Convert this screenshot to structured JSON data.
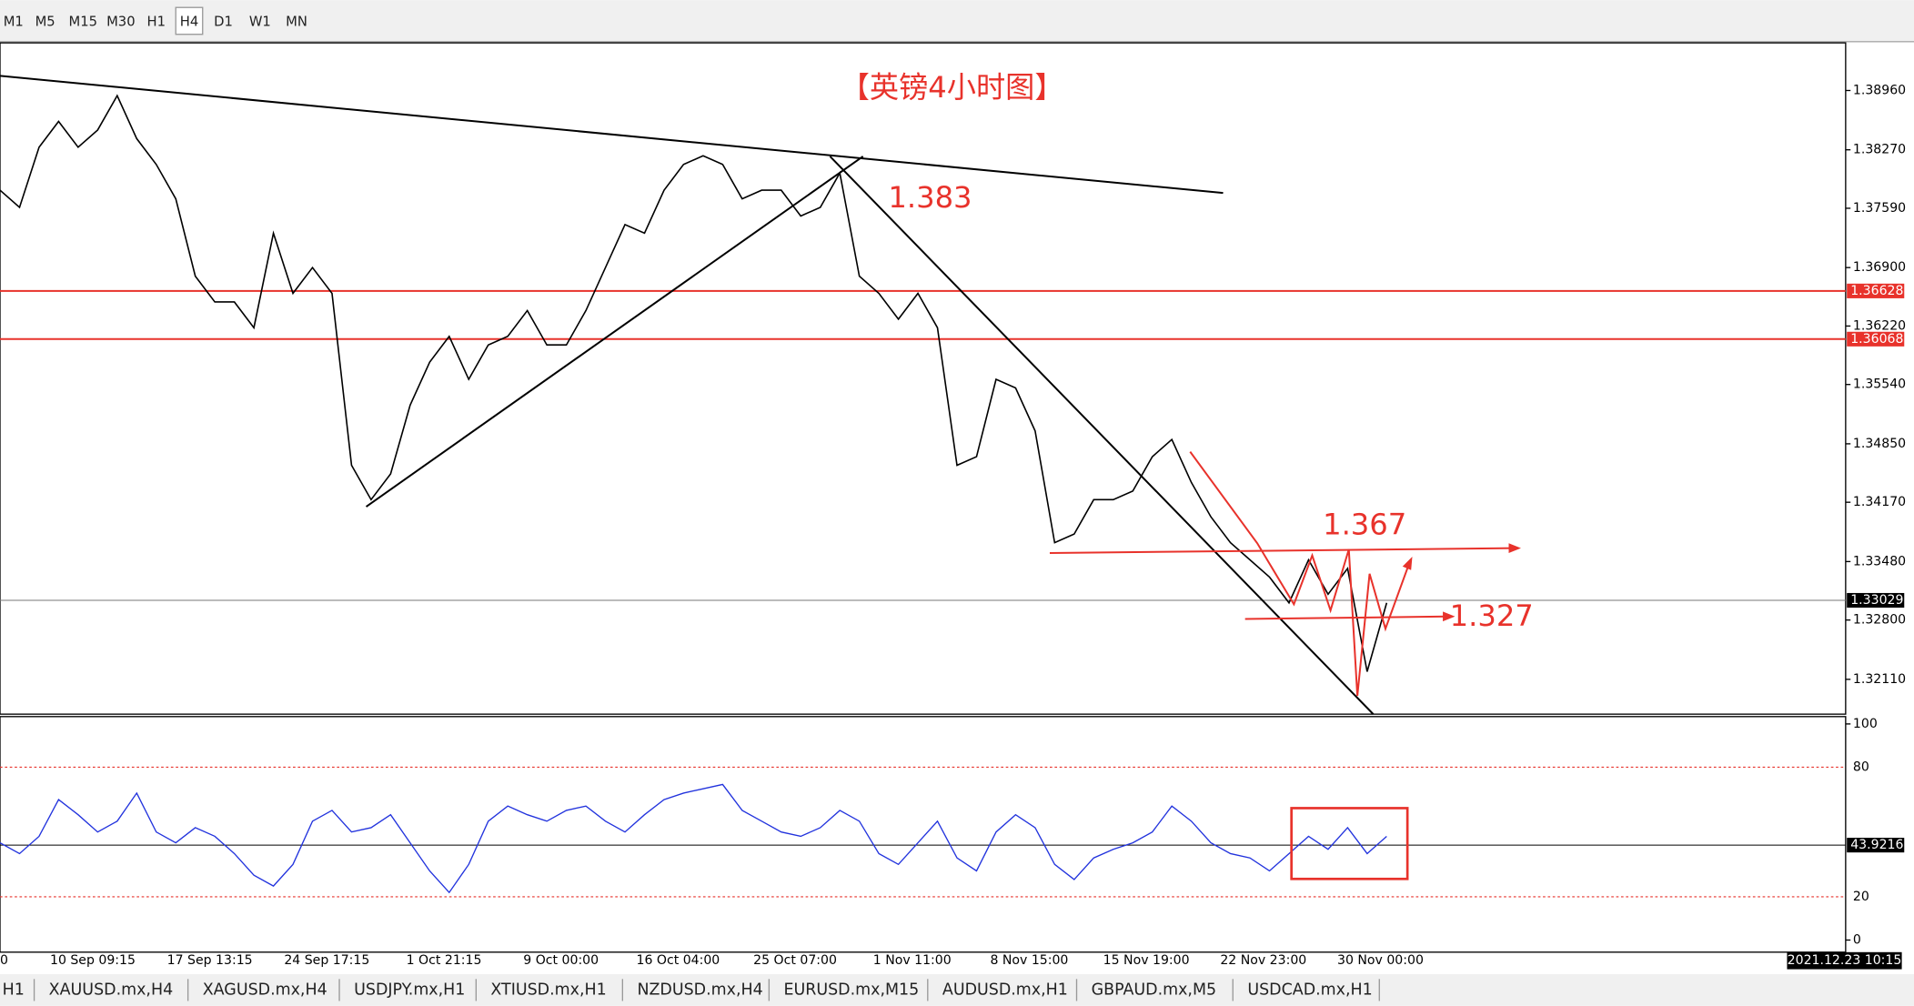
{
  "toolbar": {
    "timeframes": [
      "M1",
      "M5",
      "M15",
      "M30",
      "H1",
      "H4",
      "D1",
      "W1",
      "MN"
    ],
    "active": "H4"
  },
  "chart": {
    "title": "【英镑4小时图】",
    "annotations": [
      "1.383",
      "1.367",
      "1.327"
    ],
    "ylim": [
      1.31705,
      1.39514
    ],
    "price_ticks": [
      {
        "value": 1.3896,
        "label": "1.38960"
      },
      {
        "value": 1.3827,
        "label": "1.38270"
      },
      {
        "value": 1.3759,
        "label": "1.37590"
      },
      {
        "value": 1.369,
        "label": "1.36900"
      },
      {
        "value": 1.3622,
        "label": "1.36220"
      },
      {
        "value": 1.3554,
        "label": "1.35540"
      },
      {
        "value": 1.3485,
        "label": "1.34850"
      },
      {
        "value": 1.3417,
        "label": "1.34170"
      },
      {
        "value": 1.3348,
        "label": "1.33480"
      },
      {
        "value": 1.328,
        "label": "1.32800"
      },
      {
        "value": 1.3211,
        "label": "1.32110"
      }
    ],
    "levels": [
      1.36628,
      1.36068
    ],
    "current": 1.33029,
    "price": [
      1.378,
      1.376,
      1.383,
      1.386,
      1.383,
      1.385,
      1.389,
      1.384,
      1.381,
      1.377,
      1.368,
      1.365,
      1.365,
      1.362,
      1.373,
      1.366,
      1.369,
      1.366,
      1.346,
      1.342,
      1.345,
      1.353,
      1.358,
      1.361,
      1.356,
      1.36,
      1.361,
      1.364,
      1.36,
      1.36,
      1.364,
      1.369,
      1.374,
      1.373,
      1.378,
      1.381,
      1.382,
      1.381,
      1.377,
      1.378,
      1.378,
      1.375,
      1.376,
      1.38,
      1.368,
      1.366,
      1.363,
      1.366,
      1.362,
      1.346,
      1.347,
      1.356,
      1.355,
      1.35,
      1.337,
      1.338,
      1.342,
      1.342,
      1.343,
      1.347,
      1.349,
      1.344,
      1.34,
      1.337,
      1.335,
      1.333,
      1.33,
      1.335,
      1.331,
      1.334,
      1.322,
      1.33
    ],
    "time_labels": [
      "0",
      "10 Sep 09:15",
      "17 Sep 13:15",
      "24 Sep 17:15",
      "1 Oct 21:15",
      "9 Oct 00:00",
      "16 Oct 04:00",
      "25 Oct 07:00",
      "1 Nov 11:00",
      "8 Nov 15:00",
      "15 Nov 19:00",
      "22 Nov 23:00",
      "30 Nov 00:00"
    ],
    "date_box": "2021.12.23 10:15"
  },
  "indicator": {
    "ylim": [
      -5.6,
      103.4
    ],
    "yticks": [
      100,
      80,
      20,
      0
    ],
    "level": 43.9216,
    "values": [
      45,
      40,
      48,
      65,
      58,
      50,
      55,
      68,
      50,
      45,
      52,
      48,
      40,
      30,
      25,
      35,
      55,
      60,
      50,
      52,
      58,
      45,
      32,
      22,
      35,
      55,
      62,
      58,
      55,
      60,
      62,
      55,
      50,
      58,
      65,
      68,
      70,
      72,
      60,
      55,
      50,
      48,
      52,
      60,
      55,
      40,
      35,
      45,
      55,
      38,
      32,
      50,
      58,
      52,
      35,
      28,
      38,
      42,
      45,
      50,
      62,
      55,
      45,
      40,
      38,
      32,
      40,
      48,
      42,
      52,
      40,
      48
    ]
  },
  "tabs": [
    "H1",
    "XAUUSD.mx,H4",
    "XAGUSD.mx,H4",
    "USDJPY.mx,H1",
    "XTIUSD.mx,H1",
    "NZDUSD.mx,H4",
    "EURUSD.mx,M15",
    "AUDUSD.mx,H1",
    "GBPAUD.mx,M5",
    "USDCAD.mx,H1"
  ]
}
